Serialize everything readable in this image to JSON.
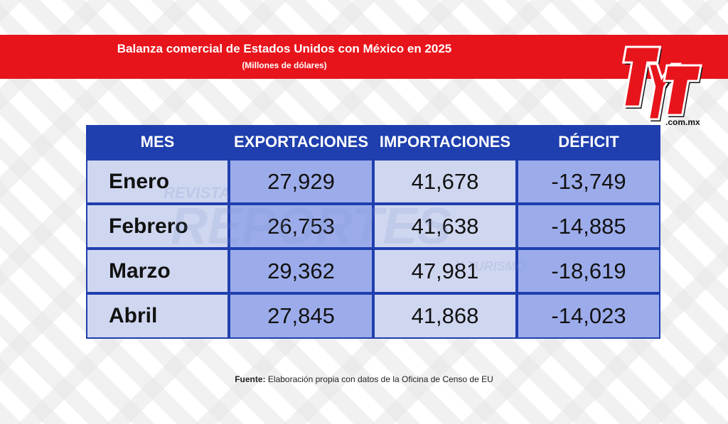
{
  "header": {
    "title": "Balanza comercial de Estados Unidos con México en 2025",
    "subtitle": "(Millones de dólares)"
  },
  "logo": {
    "text": "TyT",
    "domain": ".com.mx",
    "color": "#e8141b"
  },
  "watermark": {
    "lines": [
      "REVISTA",
      "REPORTES",
      "Y TURISMO"
    ]
  },
  "chart_data": {
    "type": "table",
    "title": "Balanza comercial de Estados Unidos con México en 2025",
    "subtitle": "(Millones de dólares)",
    "columns": [
      "MES",
      "EXPORTACIONES",
      "IMPORTACIONES",
      "DÉFICIT"
    ],
    "rows": [
      [
        "Enero",
        "27,929",
        "41,678",
        "-13,749"
      ],
      [
        "Febrero",
        "26,753",
        "41,638",
        "-14,885"
      ],
      [
        "Marzo",
        "29,362",
        "47,981",
        "-18,619"
      ],
      [
        "Abril",
        "27,845",
        "41,868",
        "-14,023"
      ]
    ],
    "series": [
      {
        "name": "EXPORTACIONES",
        "values": [
          27929,
          26753,
          29362,
          27845
        ]
      },
      {
        "name": "IMPORTACIONES",
        "values": [
          41678,
          41638,
          47981,
          41868
        ]
      },
      {
        "name": "DÉFICIT",
        "values": [
          -13749,
          -14885,
          -18619,
          -14023
        ]
      }
    ]
  },
  "footer": {
    "source_label": "Fuente:",
    "source_text": "Elaboración propia con datos de la Oficina de Censo de EU"
  },
  "colors": {
    "banner": "#e8141b",
    "table_border": "#1f3fae",
    "header_bg": "#1f3fae",
    "cell_light": "#cfd6f0",
    "cell_dark": "#9caceb"
  }
}
